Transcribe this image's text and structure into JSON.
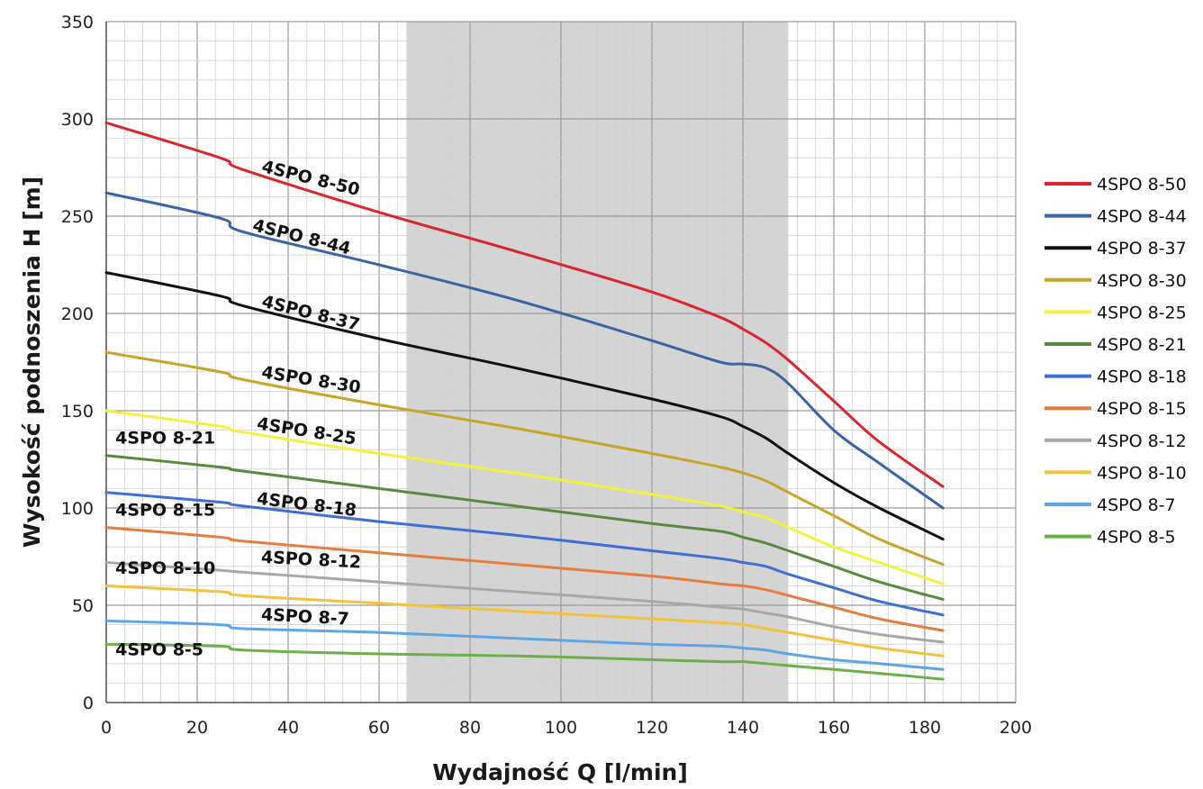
{
  "chart_data": {
    "type": "line",
    "title": "",
    "xlabel": "Wydajność Q [l/min]",
    "ylabel": "Wysokość podnoszenia H [m]",
    "xlim": [
      0,
      200
    ],
    "ylim": [
      0,
      350
    ],
    "x_ticks": [
      0,
      20,
      40,
      60,
      80,
      100,
      120,
      140,
      160,
      180,
      200
    ],
    "y_ticks": [
      0,
      50,
      100,
      150,
      200,
      250,
      300,
      350
    ],
    "grid": true,
    "legend_position": "right",
    "highlight_band": {
      "x_from": 66,
      "x_to": 150,
      "color": "#d4d4d4"
    },
    "x": [
      0,
      25,
      30,
      60,
      90,
      120,
      135,
      140,
      145,
      150,
      160,
      170,
      184
    ],
    "series": [
      {
        "name": "4SPO 8-50",
        "color": "#d7262e",
        "label": "4SPO 8-50",
        "values": [
          298,
          280,
          274,
          252,
          232,
          211,
          198,
          192,
          185,
          176,
          155,
          134,
          111
        ]
      },
      {
        "name": "4SPO 8-44",
        "color": "#3a62a7",
        "label": "4SPO 8-44",
        "values": [
          262,
          249,
          242,
          225,
          207,
          186,
          175,
          174,
          172,
          164,
          140,
          123,
          100
        ]
      },
      {
        "name": "4SPO 8-37",
        "color": "#111111",
        "label": "4SPO 8-37",
        "values": [
          221,
          209,
          204,
          187,
          172,
          156,
          147,
          142,
          136,
          128,
          113,
          100,
          84
        ]
      },
      {
        "name": "4SPO 8-30",
        "color": "#c9a227",
        "label": "4SPO 8-30",
        "values": [
          180,
          170,
          166,
          153,
          141,
          128,
          121,
          118,
          114,
          108,
          96,
          84,
          71
        ]
      },
      {
        "name": "4SPO 8-25",
        "color": "#f2f23c",
        "label": "4SPO 8-25",
        "values": [
          150,
          142,
          139,
          128,
          118,
          107,
          101,
          98,
          95,
          90,
          80,
          72,
          61
        ]
      },
      {
        "name": "4SPO 8-21",
        "color": "#568b3c",
        "label": "4SPO 8-21",
        "values": [
          127,
          121,
          119,
          110,
          101,
          92,
          88,
          85,
          82,
          78,
          70,
          62,
          53
        ]
      },
      {
        "name": "4SPO 8-18",
        "color": "#3c6fd6",
        "label": "4SPO 8-18",
        "values": [
          108,
          103,
          101,
          93,
          86,
          78,
          74,
          72,
          70,
          66,
          59,
          52,
          45
        ]
      },
      {
        "name": "4SPO 8-15",
        "color": "#e57d3c",
        "label": "4SPO 8-15",
        "values": [
          90,
          85,
          83,
          77,
          71,
          65,
          61,
          60,
          58,
          55,
          49,
          43,
          37
        ]
      },
      {
        "name": "4SPO 8-12",
        "color": "#a8a8a8",
        "label": "4SPO 8-12",
        "values": [
          72,
          68,
          67,
          62,
          57,
          52,
          49,
          48,
          46,
          44,
          39,
          35,
          31
        ]
      },
      {
        "name": "4SPO 8-10",
        "color": "#f5c03a",
        "label": "4SPO 8-10",
        "values": [
          60,
          57,
          55,
          51,
          47,
          43,
          41,
          40,
          38,
          36,
          32,
          28,
          24
        ]
      },
      {
        "name": "4SPO 8-7",
        "color": "#5ca6e6",
        "label": "4SPO 8-7",
        "values": [
          42,
          40,
          38,
          36,
          33,
          30,
          29,
          28,
          27,
          25,
          22,
          20,
          17
        ]
      },
      {
        "name": "4SPO 8-5",
        "color": "#6ab04a",
        "label": "4SPO 8-5",
        "values": [
          30,
          29,
          27,
          25,
          24,
          22,
          21,
          21,
          20,
          19,
          17,
          15,
          12
        ]
      }
    ]
  }
}
